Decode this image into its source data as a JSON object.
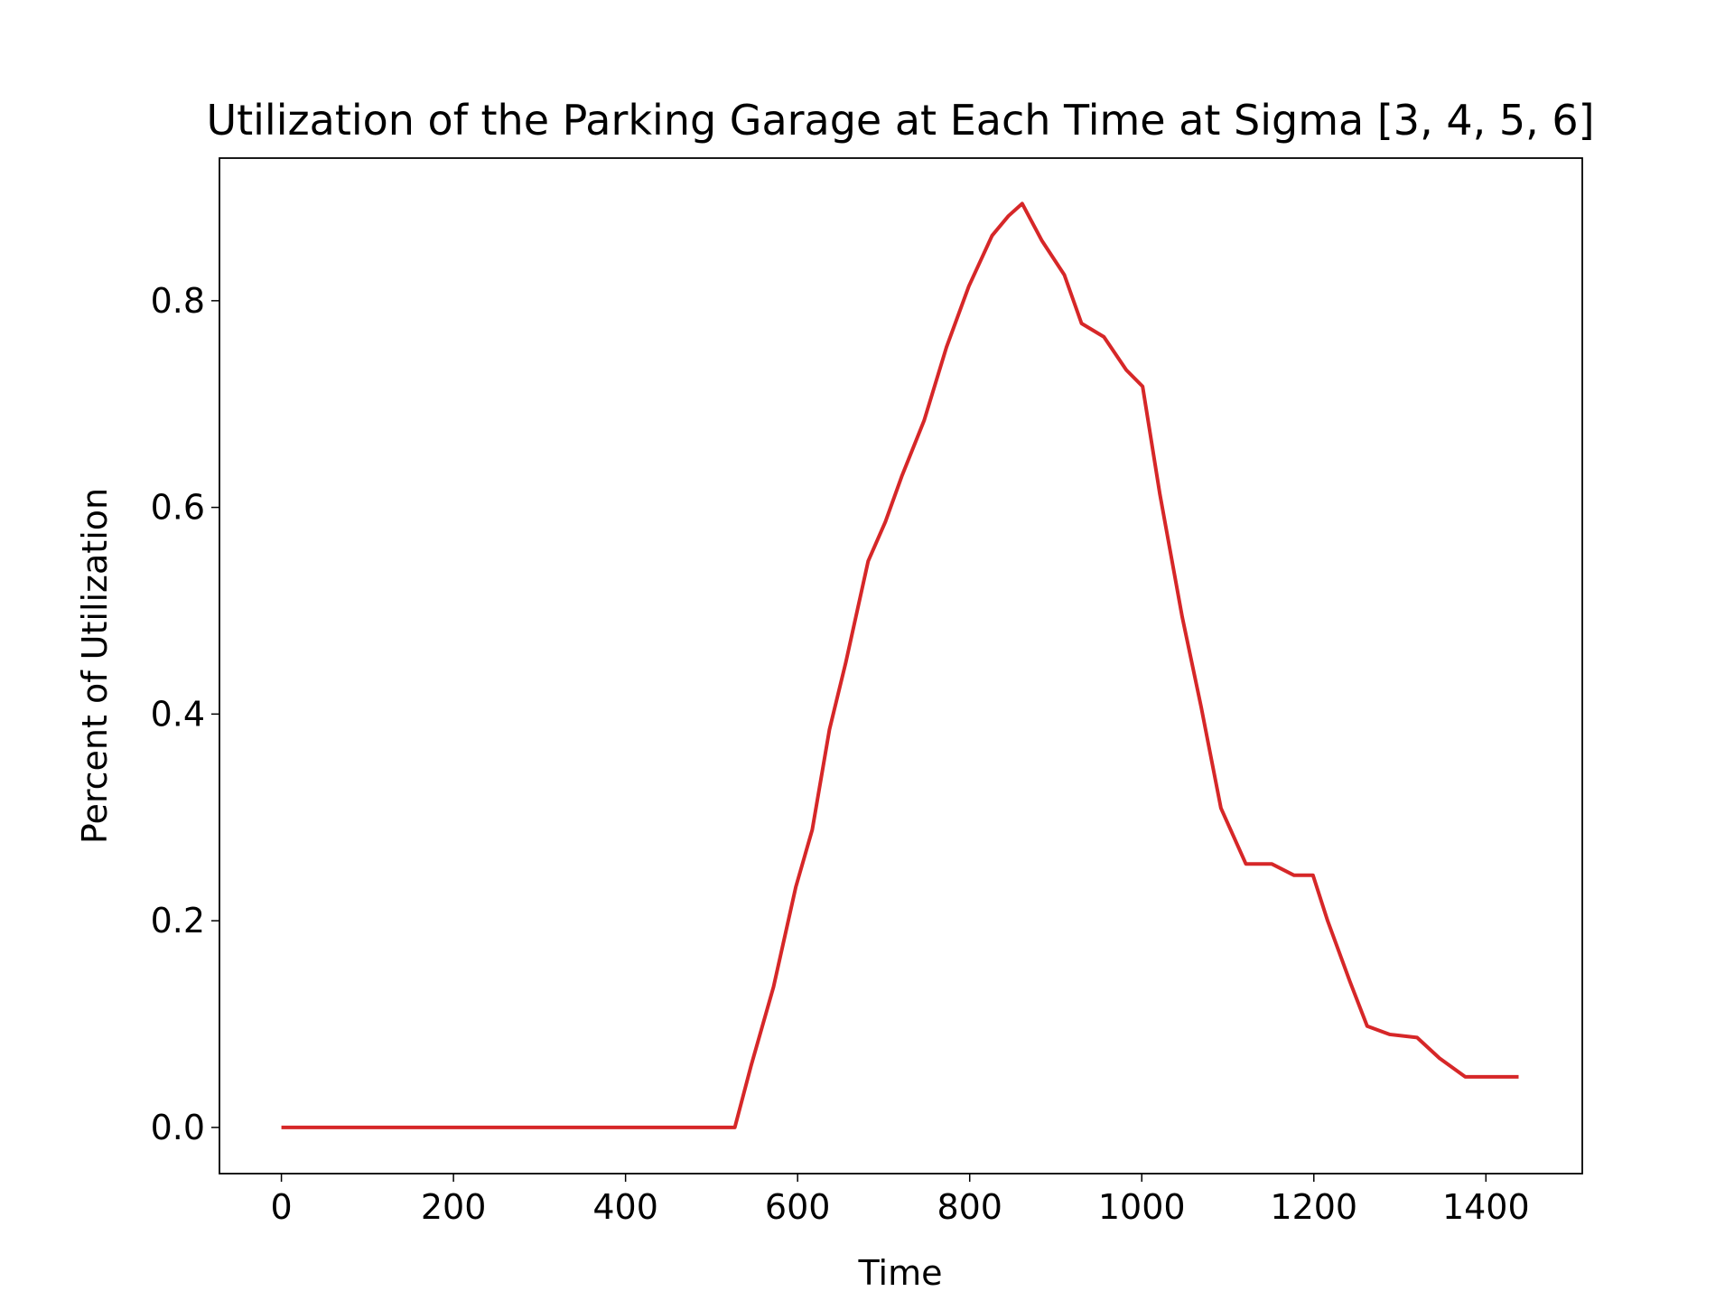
{
  "chart_data": {
    "type": "line",
    "title": "Utilization of the Parking Garage at Each Time at Sigma [3, 4, 5, 6]",
    "x_label": "Time",
    "y_label": "Percent of Utilization",
    "xlim": [
      -72,
      1512
    ],
    "xticks": [
      0,
      200,
      400,
      600,
      800,
      1000,
      1200,
      1400
    ],
    "ylim": [
      -0.0447,
      0.938
    ],
    "yticks": [
      {
        "value": 0,
        "label": "0.0"
      },
      0.2,
      0.4,
      0.6,
      0.8
    ],
    "x": [
      0,
      527,
      546,
      572,
      598,
      617,
      637,
      656,
      682,
      702,
      721,
      747,
      773,
      799,
      826,
      845,
      861,
      884,
      910,
      930,
      956,
      982,
      1001,
      1021,
      1047,
      1069,
      1092,
      1121,
      1151,
      1177,
      1199,
      1216,
      1242,
      1262,
      1288,
      1320,
      1346,
      1376,
      1438
    ],
    "series": [
      {
        "name": "Utilization",
        "color": "#d62728",
        "values": [
          0,
          0,
          0.06,
          0.136,
          0.233,
          0.288,
          0.385,
          0.45,
          0.548,
          0.586,
          0.63,
          0.684,
          0.755,
          0.814,
          0.863,
          0.882,
          0.894,
          0.858,
          0.825,
          0.778,
          0.765,
          0.733,
          0.717,
          0.613,
          0.494,
          0.407,
          0.309,
          0.255,
          0.255,
          0.244,
          0.244,
          0.2,
          0.141,
          0.098,
          0.09,
          0.087,
          0.067,
          0.049,
          0.049
        ]
      }
    ]
  }
}
